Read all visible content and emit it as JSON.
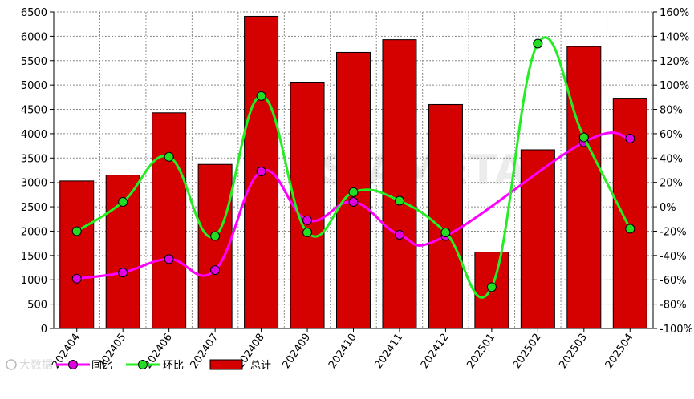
{
  "chart_data": {
    "type": "bar",
    "categories": [
      "202404",
      "202405",
      "202406",
      "202407",
      "202408",
      "202409",
      "202410",
      "202411",
      "202412",
      "202501",
      "202502",
      "202503",
      "202504"
    ],
    "series": [
      {
        "name": "总计",
        "type": "bar",
        "axis": "left",
        "values": [
          3030,
          3150,
          4430,
          3370,
          6410,
          5060,
          5670,
          5930,
          4600,
          1570,
          3670,
          5790,
          4730
        ]
      },
      {
        "name": "同比",
        "type": "line",
        "axis": "right",
        "values": [
          -59,
          -54,
          -43,
          -52,
          29,
          -11,
          4,
          -23,
          -24,
          null,
          null,
          53,
          56
        ]
      },
      {
        "name": "环比",
        "type": "line",
        "axis": "right",
        "values": [
          -20,
          4,
          41,
          -24,
          91,
          -21,
          12,
          5,
          -21,
          -66,
          134,
          57,
          -18
        ]
      }
    ],
    "left_ticks": [
      "6500",
      "6000",
      "5500",
      "5000",
      "4500",
      "4000",
      "3500",
      "3000",
      "2500",
      "2000",
      "1500",
      "1000",
      "500",
      "0"
    ],
    "right_ticks": [
      "160%",
      "140%",
      "120%",
      "100%",
      "80%",
      "60%",
      "40%",
      "20%",
      "0%",
      "-20%",
      "-40%",
      "-60%",
      "-80%",
      "-100%"
    ],
    "ylim_left": [
      0,
      6500
    ],
    "ylim_right": [
      -100,
      160
    ],
    "grid": true,
    "legend_position": "bottom-left",
    "colors": {
      "bar_fill": "#d50000",
      "bar_stroke": "#000000",
      "yoy_line": "#ff00ff",
      "yoy_marker": "#e000e0",
      "mom_line": "#22ee22",
      "mom_marker": "#22dd22"
    }
  },
  "legend": {
    "yoy_label": "同比",
    "mom_label": "环比",
    "total_label": "总计"
  }
}
